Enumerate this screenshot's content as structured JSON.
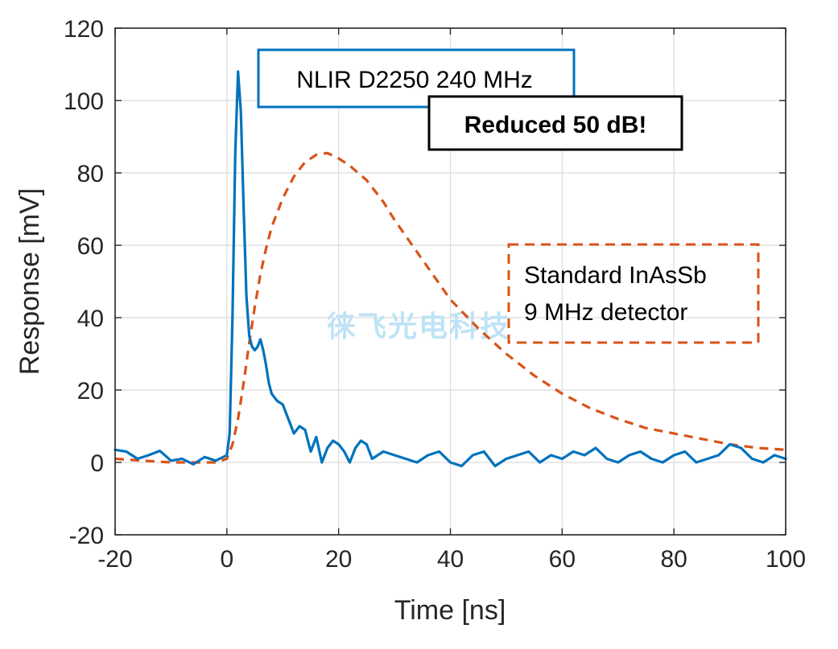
{
  "chart_data": {
    "type": "line",
    "xlabel": "Time [ns]",
    "ylabel": "Response [mV]",
    "xlim": [
      -20,
      100
    ],
    "ylim": [
      -20,
      120
    ],
    "xticks": [
      -20,
      0,
      20,
      40,
      60,
      80,
      100
    ],
    "yticks": [
      -20,
      0,
      20,
      40,
      60,
      80,
      100,
      120
    ],
    "xtick_labels": [
      "-20",
      "0",
      "20",
      "40",
      "60",
      "80",
      "100"
    ],
    "ytick_labels": [
      "-20",
      "0",
      "20",
      "40",
      "60",
      "80",
      "100",
      "120"
    ],
    "grid": true,
    "annotations": {
      "nlir_box": "NLIR D2250 240 MHz",
      "reduced_box": "Reduced 50 dB!",
      "standard_line1": "Standard InAsSb",
      "standard_line2": "9 MHz detector"
    },
    "watermark": "徕飞光电科技",
    "series": [
      {
        "color": "#0072BD",
        "style": "solid",
        "x": [
          -20,
          -18,
          -16,
          -14,
          -12,
          -10,
          -8,
          -6,
          -4,
          -2,
          0,
          0.5,
          1,
          1.5,
          2,
          2.5,
          3,
          3.5,
          4,
          4.5,
          5,
          5.5,
          6,
          6.5,
          7,
          7.5,
          8,
          9,
          10,
          11,
          12,
          13,
          14,
          15,
          16,
          17,
          18,
          19,
          20,
          21,
          22,
          23,
          24,
          25,
          26,
          28,
          30,
          32,
          34,
          36,
          38,
          40,
          42,
          44,
          46,
          48,
          50,
          52,
          54,
          56,
          58,
          60,
          62,
          64,
          66,
          68,
          70,
          72,
          74,
          76,
          78,
          80,
          82,
          84,
          86,
          88,
          90,
          92,
          94,
          96,
          98,
          100
        ],
        "y": [
          3.5,
          3,
          1,
          2,
          3.2,
          0.5,
          1,
          -0.5,
          1.5,
          0.5,
          2,
          8,
          40,
          85,
          108,
          97,
          70,
          46,
          35,
          32,
          31,
          32,
          34,
          31,
          27,
          22,
          19,
          17,
          16,
          12,
          8,
          10,
          9,
          3,
          7,
          0,
          4,
          6,
          5,
          3,
          0,
          4,
          6,
          5,
          1,
          3,
          2,
          1,
          0,
          2,
          3,
          0,
          -1,
          2,
          3,
          -1,
          1,
          2,
          3,
          0,
          2,
          1,
          3,
          2,
          4,
          1,
          0,
          2,
          3,
          1,
          0,
          2,
          3,
          0,
          1,
          2,
          5,
          4,
          1,
          0,
          2,
          1
        ]
      },
      {
        "color": "#D95319",
        "style": "dashed",
        "x": [
          -20,
          -15,
          -10,
          -5,
          -2,
          0,
          1,
          2,
          3,
          4,
          5,
          6,
          7,
          8,
          10,
          12,
          14,
          16,
          18,
          20,
          22,
          25,
          28,
          30,
          35,
          40,
          45,
          50,
          55,
          60,
          65,
          70,
          75,
          80,
          85,
          90,
          95,
          100
        ],
        "y": [
          1,
          0.5,
          0,
          0,
          0,
          1,
          5,
          12,
          22,
          33,
          43,
          52,
          59,
          65,
          73,
          79,
          83,
          85,
          85.5,
          84,
          82,
          78,
          72,
          67,
          56,
          45,
          37,
          30,
          24,
          19,
          15,
          12,
          9.5,
          8,
          6.5,
          5,
          4,
          3.5
        ]
      }
    ]
  }
}
